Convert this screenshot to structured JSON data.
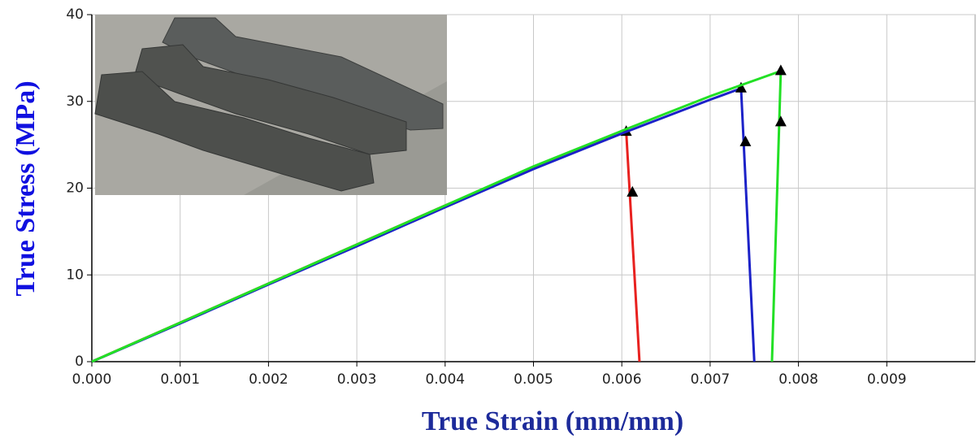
{
  "chart_data": {
    "type": "line",
    "x_label": "True Strain (mm/mm)",
    "y_label": "True Stress (MPa)",
    "xlim": [
      0,
      0.01
    ],
    "ylim": [
      0,
      40
    ],
    "xticks": [
      {
        "value": 0,
        "label": "0.000"
      },
      {
        "value": 0.001,
        "label": "0.001"
      },
      {
        "value": 0.002,
        "label": "0.002"
      },
      {
        "value": 0.003,
        "label": "0.003"
      },
      {
        "value": 0.004,
        "label": "0.004"
      },
      {
        "value": 0.005,
        "label": "0.005"
      },
      {
        "value": 0.006,
        "label": "0.006"
      },
      {
        "value": 0.007,
        "label": "0.007"
      },
      {
        "value": 0.008,
        "label": "0.008"
      },
      {
        "value": 0.009,
        "label": "0.009"
      }
    ],
    "yticks": [
      0,
      10,
      20,
      30,
      40
    ],
    "grid": true,
    "series": [
      {
        "color": "#e8211f",
        "x": [
          0,
          0.001,
          0.002,
          0.003,
          0.004,
          0.005,
          0.00605,
          0.0062
        ],
        "values": [
          0,
          4.5,
          9,
          13.5,
          18,
          22.3,
          26.5,
          0
        ],
        "marker_x": [
          0.00605,
          0.00612
        ],
        "marker_values": [
          26.5,
          19.5
        ]
      },
      {
        "color": "#1c22c8",
        "x": [
          0,
          0.001,
          0.002,
          0.003,
          0.004,
          0.005,
          0.006,
          0.007,
          0.00735,
          0.0075
        ],
        "values": [
          0,
          4.4,
          8.9,
          13.3,
          17.8,
          22.2,
          26.3,
          30.2,
          31.5,
          0
        ],
        "marker_x": [
          0.00735,
          0.0074
        ],
        "marker_values": [
          31.5,
          25.3
        ]
      },
      {
        "color": "#22e025",
        "x": [
          0,
          0.001,
          0.002,
          0.003,
          0.004,
          0.005,
          0.006,
          0.007,
          0.0078,
          0.0077
        ],
        "values": [
          0,
          4.5,
          9,
          13.5,
          18,
          22.5,
          26.6,
          30.6,
          33.5,
          0
        ],
        "marker_x": [
          0.0078,
          0.0078
        ],
        "marker_values": [
          33.5,
          27.6
        ]
      }
    ]
  }
}
